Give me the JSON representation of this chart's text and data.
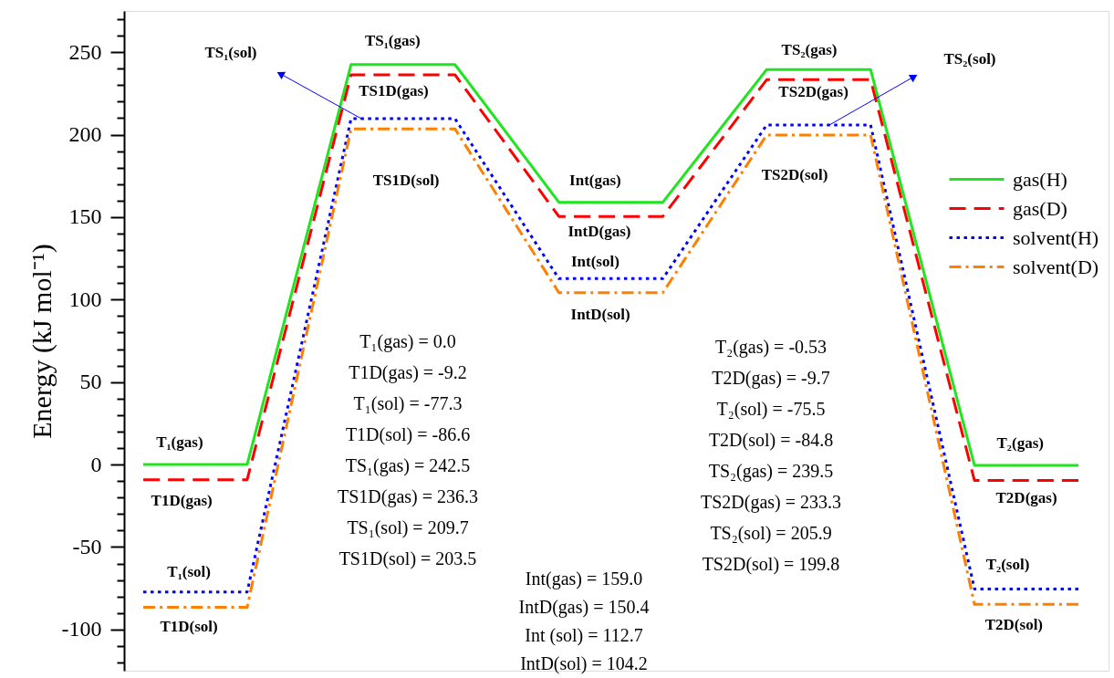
{
  "chart_data": {
    "type": "line",
    "ylabel": "Energy (kJ mol⁻¹)",
    "categories": [
      null,
      null,
      null,
      null,
      null,
      null,
      null,
      null,
      null,
      null
    ],
    "ylim": [
      -125,
      275
    ],
    "yticks": [
      {
        "value": -120,
        "label": null
      },
      {
        "value": -110,
        "label": null
      },
      -100,
      {
        "value": -90,
        "label": null
      },
      {
        "value": -80,
        "label": null
      },
      {
        "value": -70,
        "label": null
      },
      {
        "value": -60,
        "label": null
      },
      -50,
      {
        "value": -40,
        "label": null
      },
      {
        "value": -30,
        "label": null
      },
      {
        "value": -20,
        "label": null
      },
      {
        "value": -10,
        "label": null
      },
      0,
      {
        "value": 10,
        "label": null
      },
      {
        "value": 20,
        "label": null
      },
      {
        "value": 30,
        "label": null
      },
      {
        "value": 40,
        "label": null
      },
      50,
      {
        "value": 60,
        "label": null
      },
      {
        "value": 70,
        "label": null
      },
      {
        "value": 80,
        "label": null
      },
      {
        "value": 90,
        "label": null
      },
      100,
      {
        "value": 110,
        "label": null
      },
      {
        "value": 120,
        "label": null
      },
      {
        "value": 130,
        "label": null
      },
      {
        "value": 140,
        "label": null
      },
      150,
      {
        "value": 160,
        "label": null
      },
      {
        "value": 170,
        "label": null
      },
      {
        "value": 180,
        "label": null
      },
      {
        "value": 190,
        "label": null
      },
      200,
      {
        "value": 210,
        "label": null
      },
      {
        "value": 220,
        "label": null
      },
      {
        "value": 230,
        "label": null
      },
      {
        "value": 240,
        "label": null
      },
      250,
      {
        "value": 260,
        "label": null
      },
      {
        "value": 270,
        "label": null
      }
    ],
    "tick_labels": "y",
    "grid": false,
    "legend": "right",
    "series": [
      {
        "name": "gas(H)",
        "color": "#1fe51f",
        "line_style": "solid",
        "values": [
          0.0,
          0.0,
          242.5,
          242.5,
          159.0,
          159.0,
          239.5,
          239.5,
          -0.53,
          -0.53
        ]
      },
      {
        "name": "gas(D)",
        "color": "#ff0000",
        "line_style": "dashed",
        "values": [
          -9.2,
          -9.2,
          236.3,
          236.3,
          150.4,
          150.4,
          233.3,
          233.3,
          -9.7,
          -9.7
        ]
      },
      {
        "name": "solvent(H)",
        "color": "#0000ff",
        "line_style": "dotted",
        "values": [
          -77.3,
          -77.3,
          209.7,
          209.7,
          112.7,
          112.7,
          205.9,
          205.9,
          -75.5,
          -75.5
        ]
      },
      {
        "name": "solvent(D)",
        "color": "#ff8000",
        "line_style": "dashdot",
        "values": [
          -86.6,
          -86.6,
          203.5,
          203.5,
          104.2,
          104.2,
          199.8,
          199.8,
          -84.8,
          -84.8
        ]
      }
    ],
    "annotations": [
      "TS₁(sol)",
      {
        "text": "TS₁(gas)",
        "y": 242.5
      },
      {
        "text": "TS1D(gas)",
        "y": 236.3
      },
      {
        "text": "TS1D(sol)",
        "y": 203.5
      },
      {
        "text": "Int(gas)",
        "y": 159.0
      },
      {
        "text": "IntD(gas)",
        "y": 150.4
      },
      {
        "text": "Int(sol)",
        "y": 112.7
      },
      {
        "text": "IntD(sol)",
        "y": 104.2
      },
      {
        "text": "TS₂(gas)",
        "y": 239.5
      },
      {
        "text": "TS2D(gas)",
        "y": 233.3
      },
      "TS₂(sol)",
      {
        "text": "TS2D(sol)",
        "y": 199.8
      },
      {
        "text": "T₁(gas)",
        "y": 0.0
      },
      {
        "text": "T1D(gas)",
        "y": -9.2
      },
      {
        "text": "T₁(sol)",
        "y": -77.3
      },
      {
        "text": "T1D(sol)",
        "y": -86.6
      },
      {
        "text": "T₂(gas)",
        "y": -0.53
      },
      {
        "text": "T2D(gas)",
        "y": -9.7
      },
      {
        "text": "T₂(sol)",
        "y": -75.5
      },
      {
        "text": "T2D(sol)",
        "y": -84.8
      },
      "T₁(gas) = 0.0",
      "T1D(gas) = -9.2",
      "T₁(sol) = -77.3",
      "T1D(sol) = -86.6",
      "TS₁(gas) = 242.5",
      "TS1D(gas) = 236.3",
      "TS₁(sol) = 209.7",
      "TS1D(sol) = 203.5",
      "Int(gas) = 159.0",
      "IntD(gas) = 150.4",
      "Int (sol) = 112.7",
      "IntD(sol) = 104.2",
      "T₂(gas) = -0.53",
      "T2D(gas) = -9.7",
      "T₂(sol) = -75.5",
      "T2D(sol) = -84.8",
      "TS₂(gas) = 239.5",
      "TS2D(gas) = 233.3",
      "TS₂(sol) = 205.9",
      "TS2D(sol) = 199.8"
    ]
  }
}
